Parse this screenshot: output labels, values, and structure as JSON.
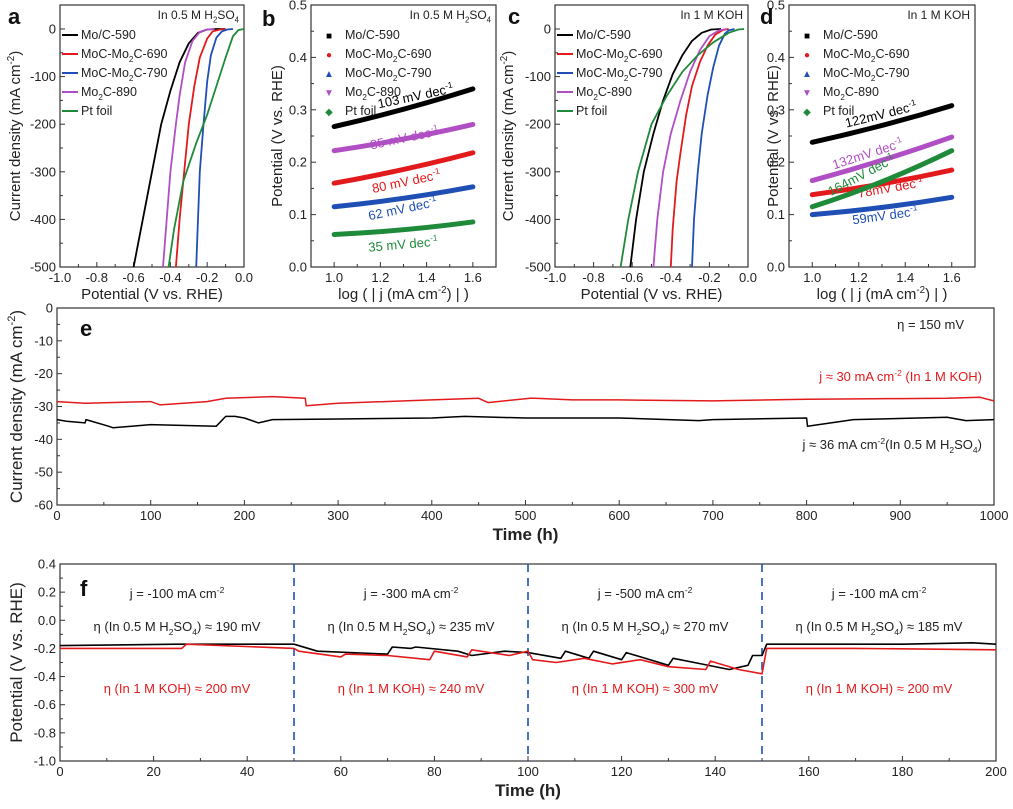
{
  "chart_data": [
    {
      "id": "a",
      "panel_label": "a",
      "type": "line",
      "title": "In 0.5 M H2SO4",
      "annotation": "In 0.5 M H₂SO₄",
      "xlabel": "Potential (V vs. RHE)",
      "ylabel": "Current density (mA cm⁻²)",
      "xlim": [
        -1.0,
        0.0
      ],
      "ylim": [
        -500,
        0
      ],
      "xticks": [
        "-1.0",
        "-0.8",
        "-0.6",
        "-0.4",
        "-0.2",
        "0.0"
      ],
      "yticks": [
        "0",
        "-100",
        "-200",
        "-300",
        "-400",
        "-500"
      ],
      "legend": "top-left",
      "series": [
        {
          "name": "Mo/C-590",
          "color": "#000000",
          "x": [
            -0.6,
            -0.55,
            -0.5,
            -0.45,
            -0.4,
            -0.35,
            -0.3,
            -0.25,
            -0.2,
            -0.15,
            -0.1
          ],
          "y": [
            -500,
            -400,
            -300,
            -200,
            -130,
            -70,
            -30,
            -8,
            -1,
            0,
            0
          ]
        },
        {
          "name": "MoC-Mo₂C-690",
          "color": "#e31a1c",
          "x": [
            -0.37,
            -0.35,
            -0.32,
            -0.3,
            -0.27,
            -0.24,
            -0.2,
            -0.17,
            -0.13,
            -0.1
          ],
          "y": [
            -500,
            -400,
            -280,
            -200,
            -120,
            -60,
            -20,
            -5,
            -1,
            0
          ]
        },
        {
          "name": "MoC-Mo₂C-790",
          "color": "#1f4fb5",
          "x": [
            -0.26,
            -0.25,
            -0.24,
            -0.22,
            -0.2,
            -0.18,
            -0.15,
            -0.12,
            -0.09,
            -0.06
          ],
          "y": [
            -500,
            -400,
            -300,
            -200,
            -110,
            -55,
            -18,
            -5,
            -1,
            0
          ]
        },
        {
          "name": "Mo₂C-890",
          "color": "#b04fc4",
          "x": [
            -0.44,
            -0.42,
            -0.4,
            -0.37,
            -0.35,
            -0.32,
            -0.28,
            -0.24,
            -0.2,
            -0.16
          ],
          "y": [
            -500,
            -400,
            -300,
            -200,
            -140,
            -70,
            -25,
            -6,
            -1,
            0
          ]
        },
        {
          "name": "Pt foil",
          "color": "#1f8a3a",
          "x": [
            -0.41,
            -0.38,
            -0.33,
            -0.26,
            -0.2,
            -0.15,
            -0.1,
            -0.06,
            -0.03,
            0.0
          ],
          "y": [
            -500,
            -420,
            -320,
            -240,
            -180,
            -120,
            -60,
            -15,
            -2,
            0
          ]
        }
      ]
    },
    {
      "id": "b",
      "panel_label": "b",
      "type": "line",
      "title": "In 0.5 M H2SO4",
      "annotation": "In 0.5 M H₂SO₄",
      "xlabel": "log ( | j (mA cm⁻²) | )",
      "ylabel": "Potential (V vs. RHE)",
      "xlim": [
        0.9,
        1.7
      ],
      "ylim": [
        0.0,
        0.5
      ],
      "xticks": [
        "1.0",
        "1.2",
        "1.4",
        "1.6"
      ],
      "yticks": [
        "0.0",
        "0.1",
        "0.2",
        "0.3",
        "0.4",
        "0.5"
      ],
      "legend": "top-left",
      "series": [
        {
          "name": "Mo/C-590",
          "color": "#000000",
          "marker": "square",
          "x": [
            1.0,
            1.6
          ],
          "y": [
            0.268,
            0.34
          ],
          "tafel_label": "103 mV dec⁻¹"
        },
        {
          "name": "MoC-Mo₂C-690",
          "color": "#e31a1c",
          "marker": "circle",
          "x": [
            1.0,
            1.6
          ],
          "y": [
            0.16,
            0.218
          ],
          "tafel_label": "80 mV dec⁻¹"
        },
        {
          "name": "MoC-Mo₂C-790",
          "color": "#1f4fb5",
          "marker": "triangle-up",
          "x": [
            1.0,
            1.6
          ],
          "y": [
            0.115,
            0.153
          ],
          "tafel_label": "62 mV dec⁻¹"
        },
        {
          "name": "Mo₂C-890",
          "color": "#b04fc4",
          "marker": "triangle-down",
          "x": [
            1.0,
            1.6
          ],
          "y": [
            0.222,
            0.272
          ],
          "tafel_label": "85 mV dec⁻¹"
        },
        {
          "name": "Pt foil",
          "color": "#1f8a3a",
          "marker": "diamond",
          "x": [
            1.0,
            1.6
          ],
          "y": [
            0.062,
            0.086
          ],
          "tafel_label": "35 mV dec⁻¹"
        }
      ]
    },
    {
      "id": "c",
      "panel_label": "c",
      "type": "line",
      "title": "In 1 M KOH",
      "annotation": "In 1 M KOH",
      "xlabel": "Potential (V vs. RHE)",
      "ylabel": "Current density (mA cm⁻²)",
      "xlim": [
        -1.0,
        0.0
      ],
      "ylim": [
        -500,
        0
      ],
      "xticks": [
        "-1.0",
        "-0.8",
        "-0.6",
        "-0.4",
        "-0.2",
        "0.0"
      ],
      "yticks": [
        "0",
        "-100",
        "-200",
        "-300",
        "-400",
        "-500"
      ],
      "legend": "top-left",
      "series": [
        {
          "name": "Mo/C-590",
          "color": "#000000",
          "x": [
            -0.61,
            -0.58,
            -0.54,
            -0.49,
            -0.44,
            -0.39,
            -0.34,
            -0.29,
            -0.24,
            -0.19,
            -0.14
          ],
          "y": [
            -500,
            -400,
            -300,
            -220,
            -150,
            -95,
            -55,
            -25,
            -8,
            -1,
            0
          ]
        },
        {
          "name": "MoC-Mo₂C-690",
          "color": "#e31a1c",
          "x": [
            -0.4,
            -0.39,
            -0.37,
            -0.35,
            -0.32,
            -0.29,
            -0.25,
            -0.21,
            -0.17,
            -0.13,
            -0.1
          ],
          "y": [
            -500,
            -420,
            -320,
            -260,
            -180,
            -120,
            -70,
            -35,
            -12,
            -2,
            0
          ]
        },
        {
          "name": "MoC-Mo₂C-790",
          "color": "#1f4fb5",
          "x": [
            -0.29,
            -0.28,
            -0.26,
            -0.24,
            -0.21,
            -0.18,
            -0.15,
            -0.12,
            -0.1,
            -0.07
          ],
          "y": [
            -500,
            -400,
            -300,
            -220,
            -140,
            -80,
            -35,
            -10,
            -3,
            0
          ]
        },
        {
          "name": "Mo₂C-890",
          "color": "#b04fc4",
          "x": [
            -0.49,
            -0.47,
            -0.44,
            -0.4,
            -0.35,
            -0.3,
            -0.25,
            -0.2,
            -0.15,
            -0.11
          ],
          "y": [
            -500,
            -400,
            -300,
            -220,
            -150,
            -90,
            -45,
            -15,
            -3,
            0
          ]
        },
        {
          "name": "Pt foil",
          "color": "#1f8a3a",
          "x": [
            -0.66,
            -0.62,
            -0.57,
            -0.5,
            -0.42,
            -0.34,
            -0.26,
            -0.18,
            -0.1,
            -0.05,
            -0.02
          ],
          "y": [
            -500,
            -400,
            -300,
            -200,
            -140,
            -90,
            -55,
            -28,
            -8,
            -1,
            0
          ]
        }
      ]
    },
    {
      "id": "d",
      "panel_label": "d",
      "type": "line",
      "title": "In 1 M KOH",
      "annotation": "In 1 M KOH",
      "xlabel": "log ( | j (mA cm⁻²) | )",
      "ylabel": "Potential (V vs. RHE)",
      "xlim": [
        0.9,
        1.7
      ],
      "ylim": [
        0.0,
        0.5
      ],
      "xticks": [
        "1.0",
        "1.2",
        "1.4",
        "1.6"
      ],
      "yticks": [
        "0.0",
        "0.1",
        "0.2",
        "0.3",
        "0.4",
        "0.5"
      ],
      "legend": "top-left",
      "series": [
        {
          "name": "Mo/C-590",
          "color": "#000000",
          "marker": "square",
          "x": [
            1.0,
            1.6
          ],
          "y": [
            0.238,
            0.308
          ],
          "tafel_label": "122mV dec⁻¹"
        },
        {
          "name": "MoC-Mo₂C-690",
          "color": "#e31a1c",
          "marker": "circle",
          "x": [
            1.0,
            1.6
          ],
          "y": [
            0.138,
            0.185
          ],
          "tafel_label": "78mV dec⁻¹"
        },
        {
          "name": "MoC-Mo₂C-790",
          "color": "#1f4fb5",
          "marker": "triangle-up",
          "x": [
            1.0,
            1.6
          ],
          "y": [
            0.1,
            0.133
          ],
          "tafel_label": "59mV dec⁻¹"
        },
        {
          "name": "Mo₂C-890",
          "color": "#b04fc4",
          "marker": "triangle-down",
          "x": [
            1.0,
            1.6
          ],
          "y": [
            0.165,
            0.248
          ],
          "tafel_label": "132mV dec⁻¹"
        },
        {
          "name": "Pt foil",
          "color": "#1f8a3a",
          "marker": "diamond",
          "x": [
            1.0,
            1.6
          ],
          "y": [
            0.115,
            0.222
          ],
          "tafel_label": "164mV dec⁻¹"
        }
      ]
    },
    {
      "id": "e",
      "panel_label": "e",
      "type": "line",
      "title": "",
      "xlabel": "Time (h)",
      "ylabel": "Current density (mA cm⁻²)",
      "xlim": [
        0,
        1000
      ],
      "ylim": [
        -60,
        0
      ],
      "xticks": [
        "0",
        "100",
        "200",
        "300",
        "400",
        "500",
        "600",
        "700",
        "800",
        "900",
        "1000"
      ],
      "yticks": [
        "0",
        "-10",
        "-20",
        "-30",
        "-40",
        "-50",
        "-60"
      ],
      "annotations": {
        "eta": "η = 150 mV",
        "koh": "j ≈ 30 mA cm⁻² (In 1 M KOH)",
        "h2so4": "j ≈ 36 mA cm⁻²(In 0.5 M H₂SO₄)"
      },
      "series": [
        {
          "name": "In 1 M KOH",
          "color": "#e31a1c",
          "x": [
            0,
            30,
            100,
            110,
            160,
            180,
            230,
            265,
            266,
            300,
            400,
            450,
            460,
            470,
            505,
            510,
            550,
            600,
            700,
            800,
            900,
            950,
            985,
            1000
          ],
          "y": [
            -28.5,
            -29,
            -28.5,
            -29.5,
            -28.5,
            -27.5,
            -27,
            -27.5,
            -29.8,
            -29,
            -28,
            -27.5,
            -28.8,
            -28.5,
            -27.5,
            -27.5,
            -28,
            -28,
            -28.3,
            -27.8,
            -27.6,
            -27.5,
            -27.2,
            -28.3
          ]
        },
        {
          "name": "In 0.5 M H2SO4",
          "color": "#000000",
          "x": [
            0,
            10,
            30,
            31,
            55,
            60,
            100,
            170,
            180,
            190,
            200,
            215,
            230,
            300,
            400,
            435,
            500,
            600,
            685,
            700,
            800,
            801,
            850,
            950,
            970,
            1000
          ],
          "y": [
            -34,
            -34.5,
            -35,
            -34,
            -36,
            -36.5,
            -35.5,
            -36,
            -33,
            -33,
            -33.5,
            -35,
            -34,
            -33.8,
            -33.5,
            -33,
            -33.5,
            -33.5,
            -34.3,
            -34,
            -33.5,
            -36,
            -34,
            -33.3,
            -34.3,
            -34
          ]
        }
      ]
    },
    {
      "id": "f",
      "panel_label": "f",
      "type": "line",
      "title": "",
      "xlabel": "Time (h)",
      "ylabel": "Potential (V vs. RHE)",
      "xlim": [
        0,
        200
      ],
      "ylim": [
        -1.0,
        0.4
      ],
      "xticks": [
        "0",
        "20",
        "40",
        "60",
        "80",
        "100",
        "120",
        "140",
        "160",
        "180",
        "200"
      ],
      "yticks": [
        "0.4",
        "0.2",
        "0.0",
        "-0.2",
        "-0.4",
        "-0.6",
        "-0.8",
        "-1.0"
      ],
      "dividers": [
        50,
        100,
        150
      ],
      "segments": [
        {
          "current": "j = -100 mA cm⁻²",
          "eta_h2so4": "η (In 0.5 M H₂SO₄) ≈ 190 mV",
          "eta_koh": "η (In 1 M KOH) ≈ 200 mV"
        },
        {
          "current": "j = -300 mA cm⁻²",
          "eta_h2so4": "η (In 0.5 M H₂SO₄) ≈ 235 mV",
          "eta_koh": "η (In 1 M KOH) ≈ 240 mV"
        },
        {
          "current": "j = -500 mA cm⁻²",
          "eta_h2so4": "η (In 0.5 M H₂SO₄) ≈ 270 mV",
          "eta_koh": "η (In 1 M KOH) ≈ 300 mV"
        },
        {
          "current": "j = -100 mA cm⁻²",
          "eta_h2so4": "η (In 0.5 M H₂SO₄) ≈ 185 mV",
          "eta_koh": "η (In 1 M KOH) ≈ 200 mV"
        }
      ],
      "series": [
        {
          "name": "In 0.5 M H2SO4",
          "color": "#000000",
          "x": [
            0,
            25,
            50,
            55,
            70,
            71,
            75,
            76,
            85,
            88,
            95,
            100,
            107,
            108,
            113,
            114,
            120,
            121,
            130,
            131,
            137,
            143,
            147,
            148,
            150,
            151,
            160,
            180,
            195,
            200
          ],
          "y": [
            -0.18,
            -0.17,
            -0.17,
            -0.22,
            -0.24,
            -0.19,
            -0.2,
            -0.19,
            -0.22,
            -0.25,
            -0.22,
            -0.23,
            -0.27,
            -0.22,
            -0.27,
            -0.22,
            -0.28,
            -0.23,
            -0.32,
            -0.27,
            -0.31,
            -0.35,
            -0.32,
            -0.25,
            -0.25,
            -0.17,
            -0.17,
            -0.17,
            -0.16,
            -0.17
          ]
        },
        {
          "name": "In 1 M KOH",
          "color": "#e31a1c",
          "x": [
            0,
            26,
            27,
            50,
            51,
            60,
            61,
            70,
            79,
            80,
            87,
            88,
            96,
            100,
            101,
            106,
            112,
            118,
            124,
            130,
            138,
            139,
            145,
            150,
            151,
            170,
            200
          ],
          "y": [
            -0.2,
            -0.2,
            -0.17,
            -0.2,
            -0.22,
            -0.26,
            -0.24,
            -0.25,
            -0.28,
            -0.22,
            -0.26,
            -0.21,
            -0.25,
            -0.22,
            -0.28,
            -0.3,
            -0.27,
            -0.31,
            -0.28,
            -0.33,
            -0.35,
            -0.29,
            -0.35,
            -0.38,
            -0.2,
            -0.2,
            -0.21
          ]
        }
      ]
    }
  ]
}
